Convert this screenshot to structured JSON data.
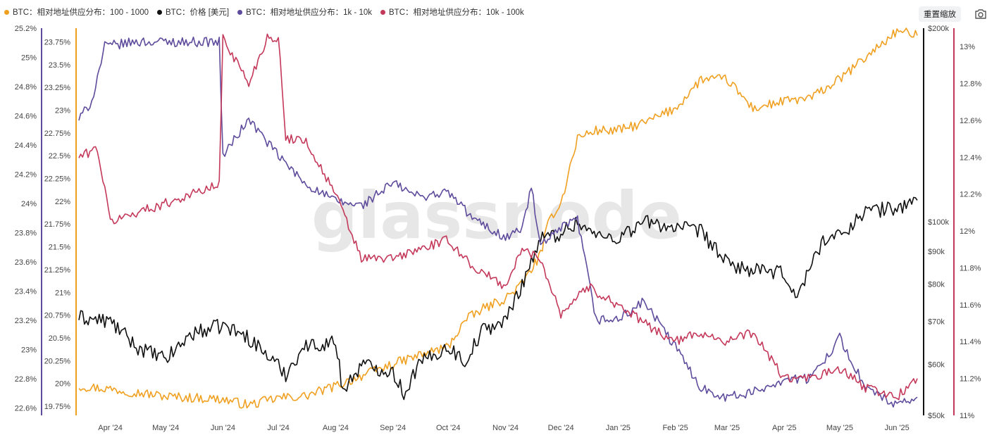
{
  "toolbar": {
    "reset_zoom_label": "重置缩放",
    "camera_icon": "camera-icon"
  },
  "watermark": "glassnode",
  "chart_data": {
    "type": "line",
    "legend": [
      {
        "label": "BTC：相对地址供应分布：100 - 1000",
        "color": "#f0a020"
      },
      {
        "label": "BTC：价格 [美元]",
        "color": "#111111"
      },
      {
        "label": "BTC：相对地址供应分布：1k - 10k",
        "color": "#5e4b9c"
      },
      {
        "label": "BTC：相对地址供应分布：10k - 100k",
        "color": "#c4385a"
      }
    ],
    "x_ticks": [
      "Apr '24",
      "May '24",
      "Jun '24",
      "Jul '24",
      "Aug '24",
      "Sep '24",
      "Oct '24",
      "Nov '24",
      "Dec '24",
      "Jan '25",
      "Feb '25",
      "Mar '25",
      "Apr '25",
      "May '25",
      "Jun '25"
    ],
    "x_range": [
      "2024-03-15",
      "2025-06-12"
    ],
    "axes": {
      "left_outer": {
        "series": "100 - 1000",
        "color": "#f0a020",
        "range": [
          22.55,
          25.2
        ],
        "ticks": [
          "25.2%",
          "25%",
          "24.8%",
          "24.6%",
          "24.4%",
          "24.2%",
          "24%",
          "23.8%",
          "23.6%",
          "23.4%",
          "23.2%",
          "23%",
          "22.8%",
          "22.6%"
        ]
      },
      "left_inner": {
        "series": "1k - 10k",
        "color": "#5e4b9c",
        "range": [
          19.65,
          23.9
        ],
        "ticks": [
          "23.75%",
          "23.5%",
          "23.25%",
          "23%",
          "22.75%",
          "22.5%",
          "22.25%",
          "22%",
          "21.75%",
          "21.5%",
          "21.25%",
          "21%",
          "20.75%",
          "20.5%",
          "20.25%",
          "20%",
          "19.75%"
        ]
      },
      "right_inner": {
        "series": "价格",
        "color": "#111111",
        "scale": "log",
        "range": [
          50000,
          200000
        ],
        "ticks": [
          "$200k",
          "$100k",
          "$90k",
          "$80k",
          "$70k",
          "$60k",
          "$50k"
        ]
      },
      "right_outer": {
        "series": "10k - 100k",
        "color": "#c4385a",
        "range": [
          11.0,
          13.1
        ],
        "ticks": [
          "13%",
          "12.8%",
          "12.6%",
          "12.4%",
          "12.2%",
          "12%",
          "11.8%",
          "11.6%",
          "11.4%",
          "11.2%",
          "11%"
        ]
      }
    },
    "series": [
      {
        "name": "BTC：相对地址供应分布：100 - 1000",
        "color": "#f0a020",
        "axis": "left_outer",
        "x": [
          "2024-03-15",
          "2024-04-01",
          "2024-05-01",
          "2024-06-01",
          "2024-06-15",
          "2024-07-01",
          "2024-07-15",
          "2024-08-01",
          "2024-08-15",
          "2024-09-01",
          "2024-09-15",
          "2024-10-01",
          "2024-10-10",
          "2024-10-20",
          "2024-11-01",
          "2024-11-10",
          "2024-11-20",
          "2024-11-25",
          "2024-12-01",
          "2024-12-10",
          "2024-12-20",
          "2025-01-01",
          "2025-01-15",
          "2025-02-01",
          "2025-02-15",
          "2025-03-01",
          "2025-03-15",
          "2025-04-01",
          "2025-04-15",
          "2025-05-01",
          "2025-05-15",
          "2025-06-01",
          "2025-06-12"
        ],
        "values": [
          22.75,
          22.73,
          22.68,
          22.66,
          22.62,
          22.67,
          22.68,
          22.75,
          22.82,
          22.9,
          22.96,
          23.02,
          23.2,
          23.28,
          23.35,
          23.45,
          23.65,
          23.9,
          24.0,
          24.45,
          24.5,
          24.5,
          24.55,
          24.65,
          24.85,
          24.85,
          24.65,
          24.7,
          24.72,
          24.85,
          25.0,
          25.18,
          25.15
        ]
      },
      {
        "name": "BTC：价格 [美元]",
        "color": "#111111",
        "axis": "right_inner",
        "x": [
          "2024-03-15",
          "2024-04-01",
          "2024-04-15",
          "2024-05-01",
          "2024-05-15",
          "2024-06-01",
          "2024-06-15",
          "2024-07-05",
          "2024-07-15",
          "2024-08-01",
          "2024-08-05",
          "2024-08-15",
          "2024-09-01",
          "2024-09-07",
          "2024-09-15",
          "2024-10-01",
          "2024-10-10",
          "2024-10-20",
          "2024-11-01",
          "2024-11-10",
          "2024-11-20",
          "2024-12-01",
          "2024-12-10",
          "2024-12-20",
          "2025-01-01",
          "2025-01-15",
          "2025-02-01",
          "2025-02-15",
          "2025-03-01",
          "2025-03-15",
          "2025-04-01",
          "2025-04-08",
          "2025-04-22",
          "2025-05-01",
          "2025-05-15",
          "2025-06-01",
          "2025-06-12"
        ],
        "values": [
          71000,
          70000,
          64000,
          61000,
          67000,
          69000,
          66000,
          58000,
          64000,
          65000,
          54500,
          60000,
          58500,
          54000,
          60000,
          64000,
          60500,
          68000,
          70000,
          80000,
          94000,
          96000,
          100000,
          95000,
          94500,
          100000,
          98000,
          96500,
          86000,
          84000,
          83000,
          76000,
          94000,
          95000,
          104000,
          105000,
          108000
        ]
      },
      {
        "name": "BTC：相对地址供应分布：1k - 10k",
        "color": "#5e4b9c",
        "axis": "left_inner",
        "x": [
          "2024-03-15",
          "2024-03-22",
          "2024-03-29",
          "2024-04-15",
          "2024-05-15",
          "2024-05-30",
          "2024-06-01",
          "2024-06-15",
          "2024-07-01",
          "2024-07-15",
          "2024-08-01",
          "2024-08-15",
          "2024-09-01",
          "2024-09-15",
          "2024-10-01",
          "2024-10-15",
          "2024-11-01",
          "2024-11-10",
          "2024-11-15",
          "2024-11-20",
          "2024-12-01",
          "2024-12-10",
          "2024-12-20",
          "2025-01-01",
          "2025-01-15",
          "2025-02-01",
          "2025-02-15",
          "2025-03-01",
          "2025-03-15",
          "2025-04-01",
          "2025-04-15",
          "2025-05-01",
          "2025-05-15",
          "2025-06-01",
          "2025-06-12"
        ],
        "values": [
          22.9,
          23.1,
          23.7,
          23.75,
          23.75,
          23.75,
          22.5,
          22.9,
          22.5,
          22.2,
          22.0,
          21.95,
          22.2,
          22.05,
          22.1,
          21.8,
          21.6,
          21.7,
          22.15,
          21.5,
          21.7,
          21.8,
          20.7,
          20.7,
          20.9,
          20.4,
          19.95,
          19.85,
          19.9,
          20.05,
          20.05,
          20.5,
          19.95,
          19.75,
          19.85
        ]
      },
      {
        "name": "BTC：相对地址供应分布：10k - 100k",
        "color": "#c4385a",
        "axis": "right_outer",
        "x": [
          "2024-03-15",
          "2024-03-25",
          "2024-04-01",
          "2024-04-15",
          "2024-05-01",
          "2024-05-15",
          "2024-05-30",
          "2024-06-01",
          "2024-06-15",
          "2024-06-25",
          "2024-07-01",
          "2024-07-05",
          "2024-07-15",
          "2024-08-01",
          "2024-08-15",
          "2024-09-01",
          "2024-09-15",
          "2024-10-01",
          "2024-10-15",
          "2024-11-01",
          "2024-11-10",
          "2024-11-20",
          "2024-12-01",
          "2024-12-15",
          "2025-01-01",
          "2025-01-15",
          "2025-02-01",
          "2025-02-15",
          "2025-03-01",
          "2025-03-15",
          "2025-04-01",
          "2025-04-15",
          "2025-05-01",
          "2025-05-15",
          "2025-06-01",
          "2025-06-12"
        ],
        "values": [
          12.4,
          12.45,
          12.05,
          12.1,
          12.15,
          12.2,
          12.25,
          13.05,
          12.8,
          13.05,
          13.05,
          12.5,
          12.5,
          12.2,
          11.85,
          11.85,
          11.9,
          11.95,
          11.8,
          11.7,
          11.9,
          11.85,
          11.55,
          11.7,
          11.6,
          11.5,
          11.4,
          11.45,
          11.4,
          11.45,
          11.2,
          11.2,
          11.25,
          11.15,
          11.1,
          11.2
        ]
      }
    ]
  }
}
